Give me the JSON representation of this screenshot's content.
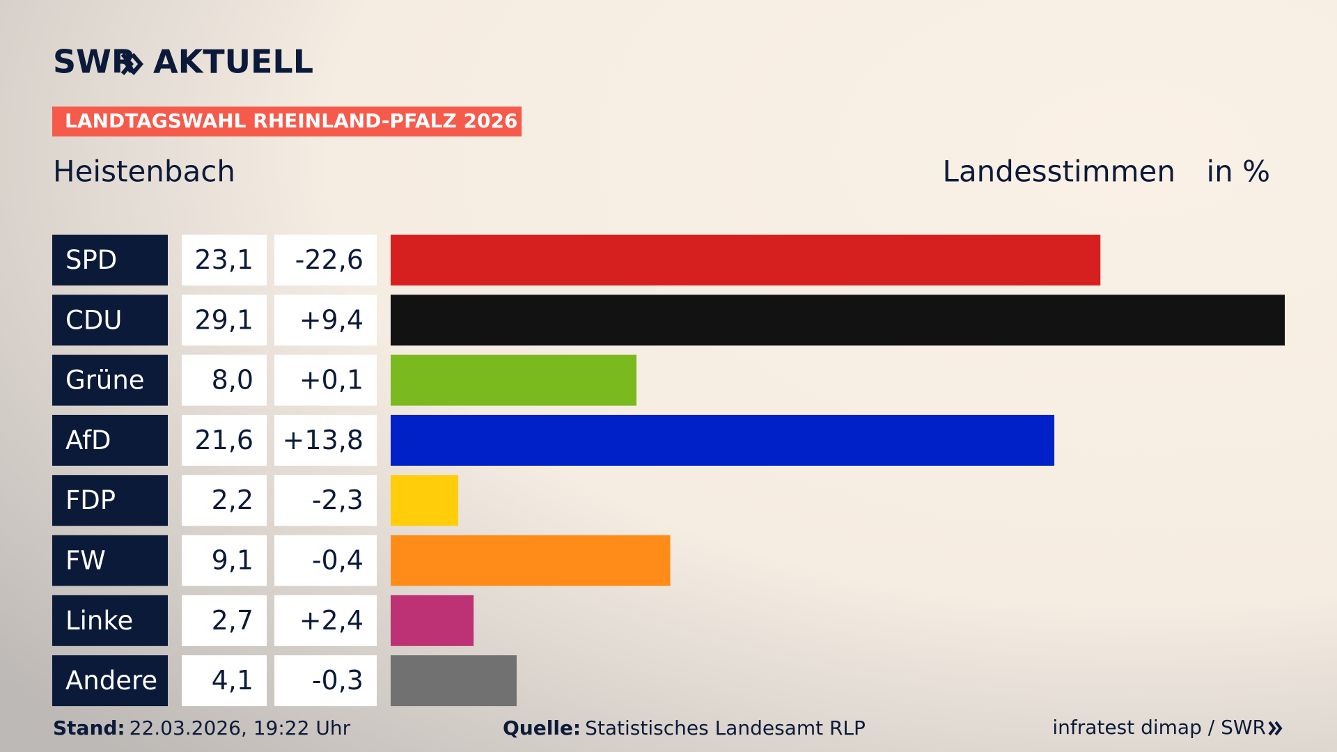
{
  "chart_data": {
    "type": "bar",
    "orientation": "horizontal",
    "logo": "SWR",
    "product": "AKTUELL",
    "title": "LANDTAGSWAHL RHEINLAND-PFALZ 2026",
    "subtitle": "Heistenbach",
    "measure": "Landesstimmen",
    "unit": "in %",
    "categories": [
      "SPD",
      "CDU",
      "Grüne",
      "AfD",
      "FDP",
      "FW",
      "Linke",
      "Andere"
    ],
    "values": [
      23.1,
      29.1,
      8.0,
      21.6,
      2.2,
      9.1,
      2.7,
      4.1
    ],
    "value_labels": [
      "23,1",
      "29,1",
      "8,0",
      "21,6",
      "2,2",
      "9,1",
      "2,7",
      "4,1"
    ],
    "changes": [
      -22.6,
      9.4,
      0.1,
      13.8,
      -2.3,
      -0.4,
      2.4,
      -0.3
    ],
    "change_labels": [
      "-22,6",
      "+9,4",
      "+0,1",
      "+13,8",
      "-2,3",
      "-0,4",
      "+2,4",
      "-0,3"
    ],
    "colors": [
      "#d61f1f",
      "#121212",
      "#7aba1e",
      "#0021c8",
      "#ffcd0a",
      "#ff8c19",
      "#bc3275",
      "#717172"
    ],
    "footer": {
      "date_label": "Stand:",
      "date": "22.03.2026, 19:22 Uhr",
      "source_label": "Quelle:",
      "source": "Statistisches Landesamt RLP",
      "credit": "infratest dimap / SWR"
    }
  }
}
